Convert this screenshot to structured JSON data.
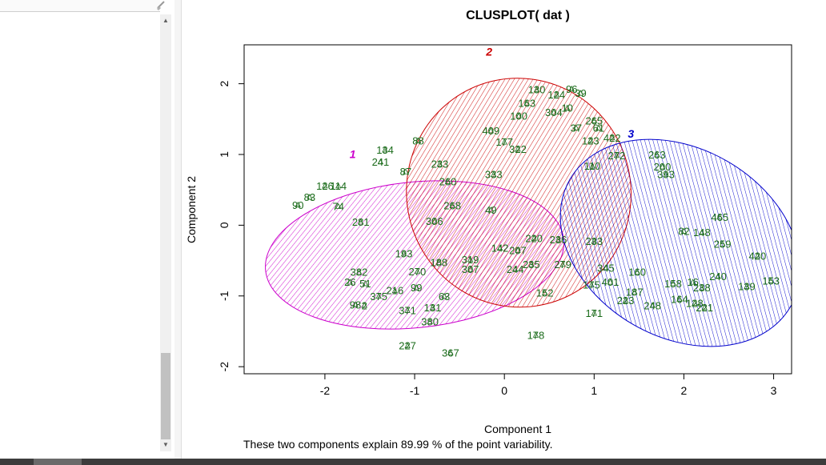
{
  "chart_data": {
    "type": "scatter",
    "title": "CLUSPLOT( dat )",
    "xlabel": "Component 1",
    "ylabel": "Component 2",
    "subtitle": "These two components explain 89.99 % of the point variability.",
    "xlim": [
      -2.9,
      3.2
    ],
    "ylim": [
      -2.1,
      2.55
    ],
    "xticks": [
      "-2",
      "-1",
      "0",
      "1",
      "2",
      "3"
    ],
    "yticks": [
      "-2",
      "-1",
      "0",
      "1",
      "2"
    ],
    "grid": false,
    "colors": {
      "points": "#1a6b1a",
      "cluster1": "#cc00cc",
      "cluster2": "#cc0000",
      "cluster3": "#0000cc",
      "frame": "#000000"
    },
    "clusters": [
      {
        "name": "1",
        "center": [
          -1.0,
          -0.42
        ],
        "semi_axes": [
          1.67,
          1.03
        ],
        "angle_deg": -6,
        "label_at": [
          -1.69,
          0.95
        ],
        "color": "#cc00cc"
      },
      {
        "name": "2",
        "center": [
          0.16,
          0.46
        ],
        "semi_axes": [
          1.25,
          1.62
        ],
        "angle_deg": -14,
        "label_at": [
          -0.17,
          2.4
        ],
        "color": "#cc0000"
      },
      {
        "name": "3",
        "center": [
          1.96,
          -0.25
        ],
        "semi_axes": [
          1.05,
          1.8
        ],
        "angle_deg": -60,
        "label_at": [
          1.41,
          1.24
        ],
        "color": "#0000cc"
      }
    ],
    "labeled_points": [
      {
        "label": "130",
        "x": 0.36,
        "y": 1.92
      },
      {
        "label": "124",
        "x": 0.58,
        "y": 1.85
      },
      {
        "label": "96",
        "x": 0.75,
        "y": 1.93
      },
      {
        "label": "39",
        "x": 0.85,
        "y": 1.87
      },
      {
        "label": "163",
        "x": 0.25,
        "y": 1.73
      },
      {
        "label": "304",
        "x": 0.55,
        "y": 1.6
      },
      {
        "label": "10",
        "x": 0.7,
        "y": 1.66
      },
      {
        "label": "100",
        "x": 0.16,
        "y": 1.55
      },
      {
        "label": "265",
        "x": 1.0,
        "y": 1.48
      },
      {
        "label": "37",
        "x": 0.8,
        "y": 1.38
      },
      {
        "label": "61",
        "x": 1.05,
        "y": 1.38
      },
      {
        "label": "409",
        "x": -0.15,
        "y": 1.34
      },
      {
        "label": "177",
        "x": 0.0,
        "y": 1.18
      },
      {
        "label": "123",
        "x": 0.96,
        "y": 1.2
      },
      {
        "label": "422",
        "x": 1.2,
        "y": 1.24
      },
      {
        "label": "88",
        "x": -0.96,
        "y": 1.2
      },
      {
        "label": "134",
        "x": -1.33,
        "y": 1.07
      },
      {
        "label": "322",
        "x": 0.15,
        "y": 1.08
      },
      {
        "label": "272",
        "x": 1.25,
        "y": 0.99
      },
      {
        "label": "263",
        "x": 1.7,
        "y": 1.0
      },
      {
        "label": "241",
        "x": -1.38,
        "y": 0.9
      },
      {
        "label": "233",
        "x": -0.72,
        "y": 0.87
      },
      {
        "label": "110",
        "x": 0.98,
        "y": 0.84
      },
      {
        "label": "200",
        "x": 1.76,
        "y": 0.83
      },
      {
        "label": "87",
        "x": -1.1,
        "y": 0.76
      },
      {
        "label": "126",
        "x": -2.0,
        "y": 0.56
      },
      {
        "label": "114",
        "x": -1.85,
        "y": 0.56
      },
      {
        "label": "333",
        "x": -0.12,
        "y": 0.72
      },
      {
        "label": "393",
        "x": 1.8,
        "y": 0.72
      },
      {
        "label": "260",
        "x": -0.63,
        "y": 0.62
      },
      {
        "label": "83",
        "x": -2.17,
        "y": 0.4
      },
      {
        "label": "90",
        "x": -2.3,
        "y": 0.29
      },
      {
        "label": "74",
        "x": -1.85,
        "y": 0.27
      },
      {
        "label": "268",
        "x": -0.58,
        "y": 0.28
      },
      {
        "label": "49",
        "x": -0.15,
        "y": 0.22
      },
      {
        "label": "465",
        "x": 2.4,
        "y": 0.12
      },
      {
        "label": "306",
        "x": -0.78,
        "y": 0.06
      },
      {
        "label": "281",
        "x": -1.6,
        "y": 0.05
      },
      {
        "label": "82",
        "x": 2.0,
        "y": -0.08
      },
      {
        "label": "148",
        "x": 2.2,
        "y": -0.1
      },
      {
        "label": "220",
        "x": 0.33,
        "y": -0.18
      },
      {
        "label": "236",
        "x": 0.6,
        "y": -0.2
      },
      {
        "label": "233",
        "x": 1.0,
        "y": -0.22
      },
      {
        "label": "259",
        "x": 2.43,
        "y": -0.26
      },
      {
        "label": "142",
        "x": -0.05,
        "y": -0.32
      },
      {
        "label": "207",
        "x": 0.15,
        "y": -0.35
      },
      {
        "label": "193",
        "x": -1.12,
        "y": -0.4
      },
      {
        "label": "188",
        "x": -0.73,
        "y": -0.52
      },
      {
        "label": "319",
        "x": -0.38,
        "y": -0.48
      },
      {
        "label": "420",
        "x": 2.82,
        "y": -0.43
      },
      {
        "label": "235",
        "x": 0.3,
        "y": -0.55
      },
      {
        "label": "279",
        "x": 0.65,
        "y": -0.55
      },
      {
        "label": "307",
        "x": -0.38,
        "y": -0.62
      },
      {
        "label": "244",
        "x": 0.12,
        "y": -0.62
      },
      {
        "label": "345",
        "x": 1.13,
        "y": -0.6
      },
      {
        "label": "160",
        "x": 1.48,
        "y": -0.66
      },
      {
        "label": "382",
        "x": -1.62,
        "y": -0.66
      },
      {
        "label": "270",
        "x": -0.97,
        "y": -0.65
      },
      {
        "label": "240",
        "x": 2.38,
        "y": -0.72
      },
      {
        "label": "26",
        "x": -1.72,
        "y": -0.8
      },
      {
        "label": "51",
        "x": -1.55,
        "y": -0.82
      },
      {
        "label": "153",
        "x": 2.97,
        "y": -0.78
      },
      {
        "label": "175",
        "x": 0.97,
        "y": -0.84
      },
      {
        "label": "401",
        "x": 1.18,
        "y": -0.8
      },
      {
        "label": "158",
        "x": 1.88,
        "y": -0.82
      },
      {
        "label": "16",
        "x": 2.1,
        "y": -0.8
      },
      {
        "label": "139",
        "x": 2.7,
        "y": -0.86
      },
      {
        "label": "216",
        "x": -1.22,
        "y": -0.92
      },
      {
        "label": "99",
        "x": -0.98,
        "y": -0.88
      },
      {
        "label": "152",
        "x": 0.45,
        "y": -0.95
      },
      {
        "label": "187",
        "x": 1.45,
        "y": -0.94
      },
      {
        "label": "238",
        "x": 2.2,
        "y": -0.88
      },
      {
        "label": "375",
        "x": -1.4,
        "y": -1.0
      },
      {
        "label": "63",
        "x": -0.67,
        "y": -1.0
      },
      {
        "label": "223",
        "x": 1.35,
        "y": -1.06
      },
      {
        "label": "164",
        "x": 1.95,
        "y": -1.04
      },
      {
        "label": "128",
        "x": 2.12,
        "y": -1.1
      },
      {
        "label": "98",
        "x": -1.66,
        "y": -1.12
      },
      {
        "label": "2",
        "x": -1.56,
        "y": -1.13
      },
      {
        "label": "248",
        "x": 1.65,
        "y": -1.13
      },
      {
        "label": "131",
        "x": -0.8,
        "y": -1.16
      },
      {
        "label": "371",
        "x": -1.08,
        "y": -1.2
      },
      {
        "label": "171",
        "x": 1.0,
        "y": -1.24
      },
      {
        "label": "221",
        "x": 2.23,
        "y": -1.16
      },
      {
        "label": "380",
        "x": -0.83,
        "y": -1.36
      },
      {
        "label": "178",
        "x": 0.35,
        "y": -1.55
      },
      {
        "label": "227",
        "x": -1.08,
        "y": -1.7
      },
      {
        "label": "367",
        "x": -0.6,
        "y": -1.8
      }
    ]
  }
}
